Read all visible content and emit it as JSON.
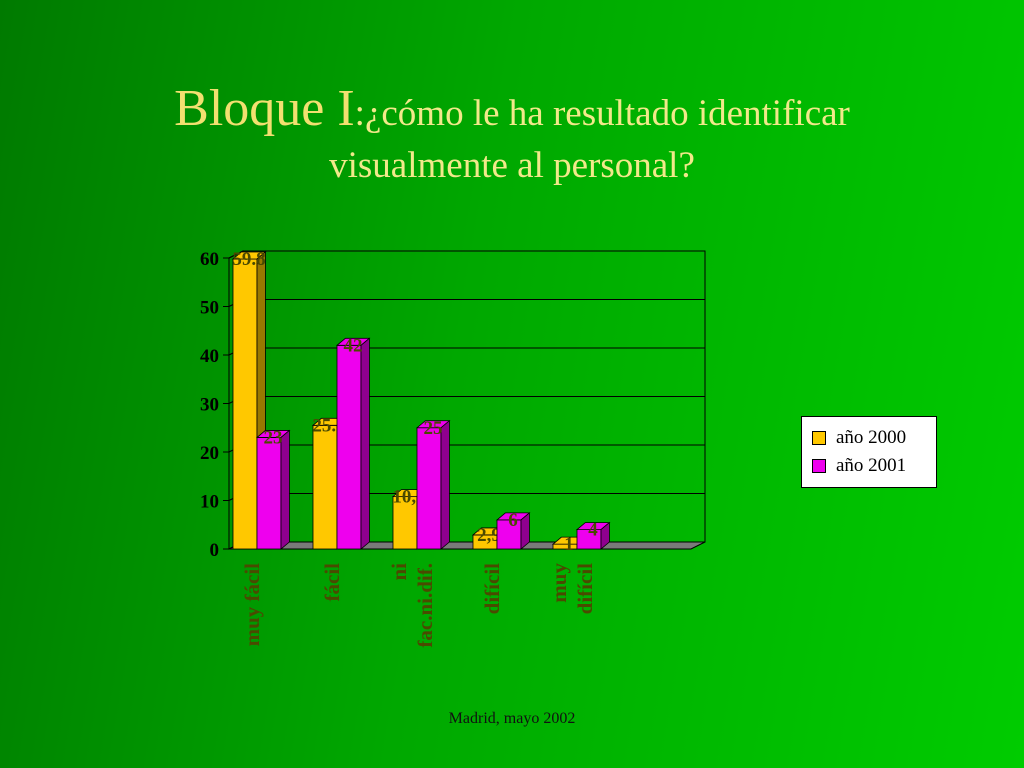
{
  "title": {
    "main": "Bloque I",
    "question_line1": ":¿cómo le ha resultado identificar",
    "question_line2": "visualmente al personal?"
  },
  "footer": "Madrid, mayo 2002",
  "colors": {
    "series_2000": "#ffc800",
    "series_2001": "#ee00ee",
    "title": "#f2e070",
    "background": "#00b000"
  },
  "chart_data": {
    "type": "bar",
    "categories": [
      "muy fácil",
      "fácil",
      "ni fac.ni.dif.",
      "difícil",
      "muy difícil"
    ],
    "category_lines": [
      [
        "muy fácil"
      ],
      [
        "fácil"
      ],
      [
        "ni",
        "fac.ni.dif."
      ],
      [
        "difícil"
      ],
      [
        "muy",
        "difícil"
      ]
    ],
    "series": [
      {
        "name": "año 2000",
        "values": [
          59.8,
          25.5,
          10.8,
          2.9,
          1
        ],
        "labels": [
          "59.8",
          "25.5",
          "10,8",
          "2,9",
          "1"
        ]
      },
      {
        "name": "año 2001",
        "values": [
          23,
          42,
          25,
          6,
          4
        ],
        "labels": [
          "23",
          "42",
          "25",
          "6",
          "4"
        ]
      }
    ],
    "yticks": [
      "0",
      "10",
      "20",
      "30",
      "40",
      "50",
      "60"
    ],
    "ylim": [
      0,
      60
    ],
    "grid": true,
    "legend_position": "right",
    "style": "3d-column"
  }
}
